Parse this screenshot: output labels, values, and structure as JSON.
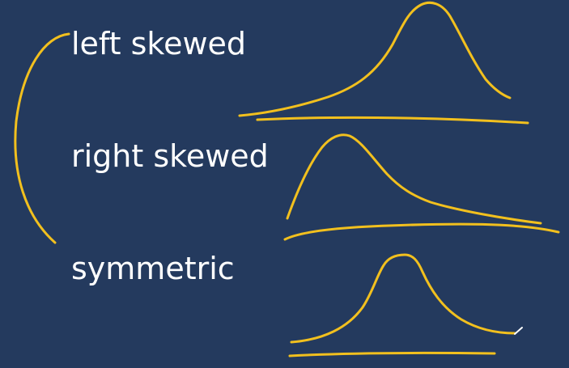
{
  "labels": {
    "left_skewed": "left skewed",
    "right_skewed": "right skewed",
    "symmetric": "symmetric"
  },
  "colors": {
    "background": "#243a5e",
    "text": "#ffffff",
    "ink": "#f2c01e"
  }
}
